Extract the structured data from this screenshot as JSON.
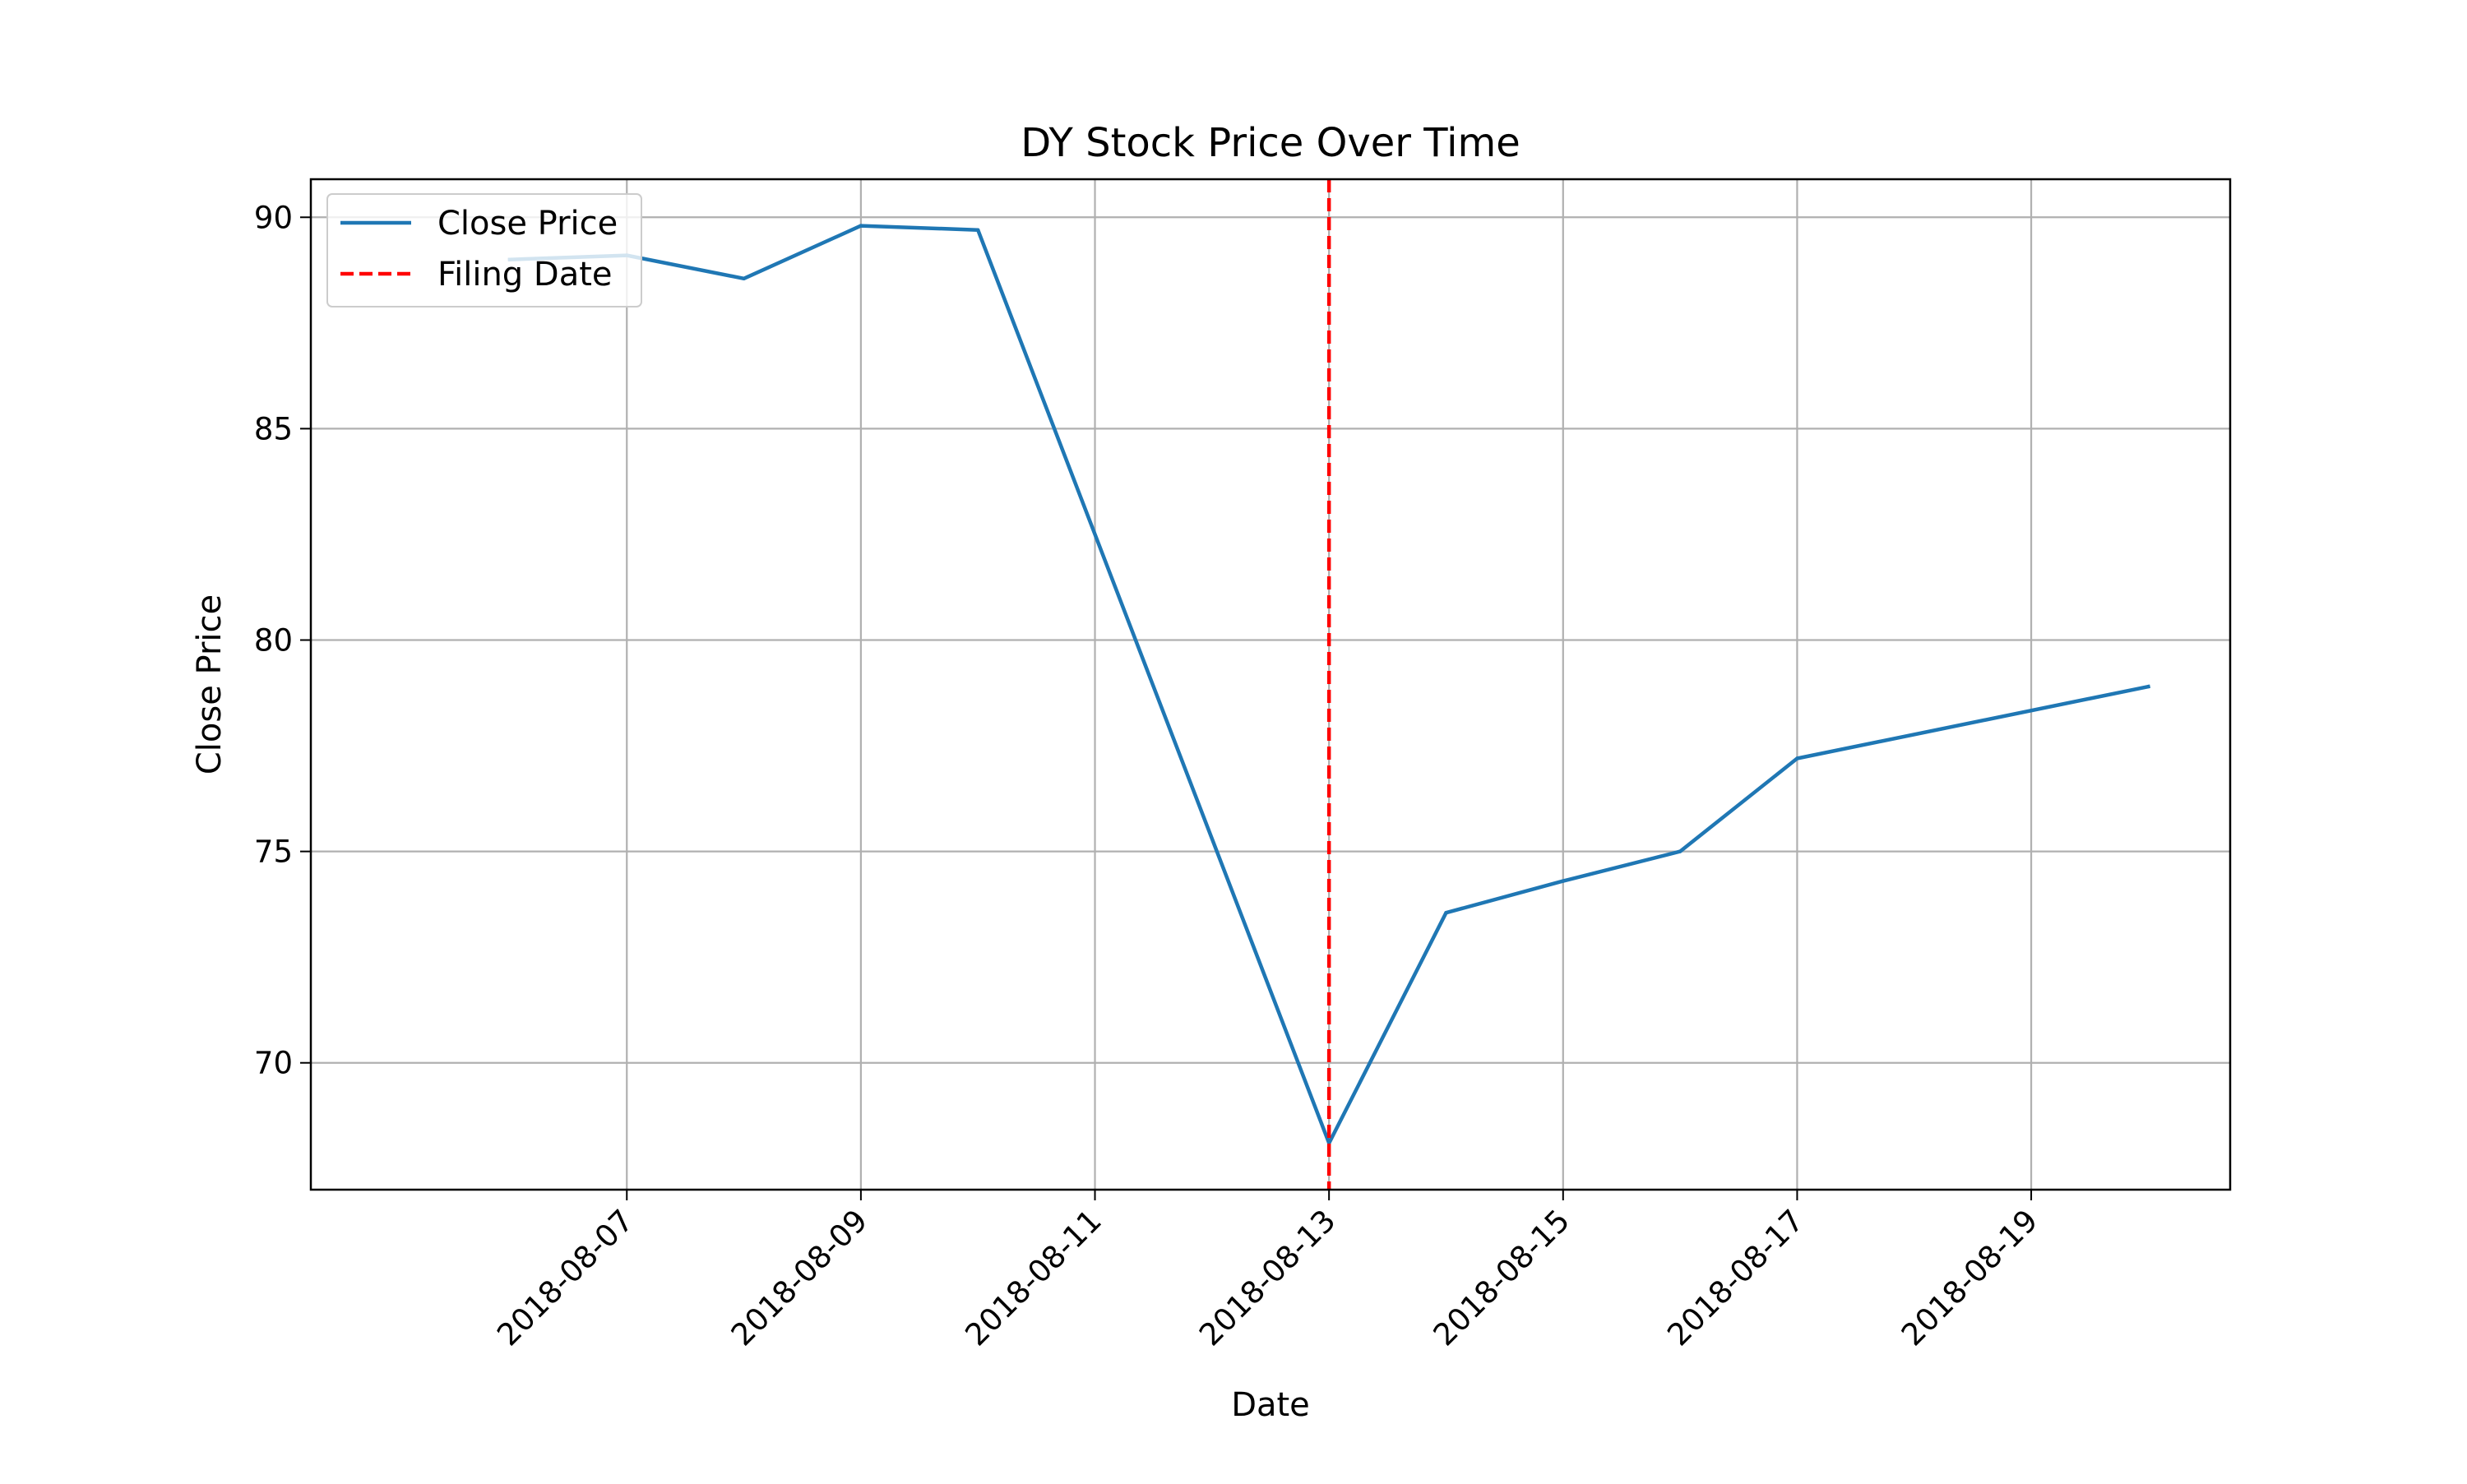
{
  "chart_data": {
    "type": "line",
    "title": "DY Stock Price Over Time",
    "xlabel": "Date",
    "ylabel": "Close Price",
    "x_tick_labels": [
      "2018-08-07",
      "2018-08-09",
      "2018-08-11",
      "2018-08-13",
      "2018-08-15",
      "2018-08-17",
      "2018-08-19"
    ],
    "y_tick_labels": [
      "70",
      "75",
      "80",
      "85",
      "90"
    ],
    "xlim": [
      "2018-08-05",
      "2018-08-20"
    ],
    "ylim": [
      67,
      90.9
    ],
    "grid": true,
    "legend_position": "upper-left",
    "series": [
      {
        "name": "Close Price",
        "color": "#1f77b4",
        "style": "solid",
        "x": [
          "2018-08-06",
          "2018-08-07",
          "2018-08-08",
          "2018-08-09",
          "2018-08-10",
          "2018-08-13",
          "2018-08-14",
          "2018-08-15",
          "2018-08-16",
          "2018-08-17",
          "2018-08-20"
        ],
        "y": [
          89.0,
          89.1,
          88.55,
          89.8,
          89.7,
          68.1,
          73.55,
          74.3,
          75.0,
          77.2,
          78.9
        ]
      }
    ],
    "vertical_lines": [
      {
        "name": "Filing Date",
        "x": "2018-08-13",
        "color": "#ff0000",
        "style": "dashed"
      }
    ]
  }
}
